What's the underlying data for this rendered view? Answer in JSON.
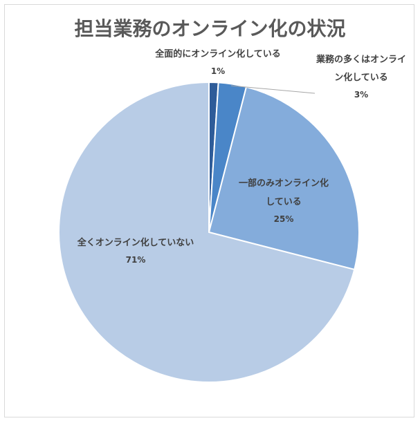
{
  "chart_data": {
    "type": "pie",
    "title": "担当業務のオンライン化の状況",
    "start_angle_deg": 0,
    "direction": "clockwise",
    "slices": [
      {
        "label": "全面的にオンライン化している",
        "value": 1,
        "display": "1%",
        "color": "#2e5c99"
      },
      {
        "label": "業務の多くはオンライン化している",
        "value": 3,
        "display": "3%",
        "color": "#4a86c8"
      },
      {
        "label": "一部のみオンライン化している",
        "value": 25,
        "display": "25%",
        "color": "#84acdb"
      },
      {
        "label": "全くオンライン化していない",
        "value": 71,
        "display": "71%",
        "color": "#b8cce6"
      }
    ]
  }
}
